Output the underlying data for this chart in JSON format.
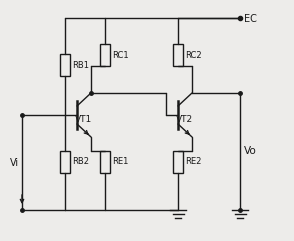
{
  "bg_color": "#edecea",
  "line_color": "#1a1a1a",
  "text_color": "#1a1a1a",
  "lw": 1.0,
  "figsize": [
    2.94,
    2.41
  ],
  "dpi": 100,
  "labels": {
    "RB1": "RB1",
    "RC1": "RC1",
    "RC2": "RC2",
    "RB2": "RB2",
    "RE1": "RE1",
    "RE2": "RE2",
    "VT1": "VT1",
    "VT2": "VT2",
    "EC": "EC",
    "Vi": "Vi",
    "Vo": "Vo"
  }
}
